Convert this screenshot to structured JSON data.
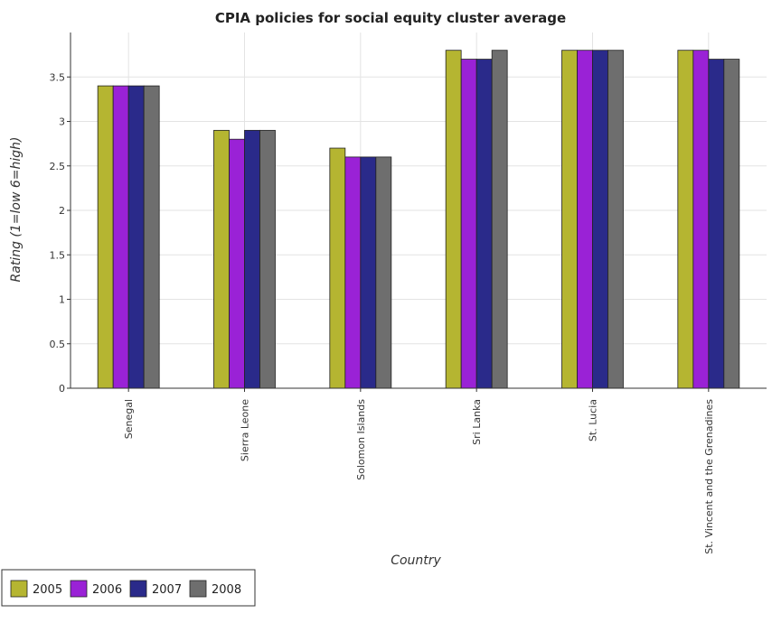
{
  "chart_data": {
    "type": "bar",
    "title": "CPIA policies for social equity cluster average",
    "xlabel": "Country",
    "ylabel": "Rating (1=low 6=high)",
    "ylim": [
      0,
      4
    ],
    "yticks": [
      "0",
      "0.5",
      "1",
      "1.5",
      "2",
      "2.5",
      "3",
      "3.5"
    ],
    "categories": [
      "Senegal",
      "Sierra Leone",
      "Solomon Islands",
      "Sri Lanka",
      "St. Lucia",
      "St. Vincent and the Grenadines"
    ],
    "series": [
      {
        "name": "2005",
        "color": "#b5b531",
        "values": [
          3.4,
          2.9,
          2.7,
          3.8,
          3.8,
          3.8
        ]
      },
      {
        "name": "2006",
        "color": "#9a22d6",
        "values": [
          3.4,
          2.8,
          2.6,
          3.7,
          3.8,
          3.8
        ]
      },
      {
        "name": "2007",
        "color": "#2a2a8a",
        "values": [
          3.4,
          2.9,
          2.6,
          3.7,
          3.8,
          3.7
        ]
      },
      {
        "name": "2008",
        "color": "#6e6e6e",
        "values": [
          3.4,
          2.9,
          2.6,
          3.8,
          3.8,
          3.7
        ]
      }
    ],
    "grid": true,
    "legend_position": "bottom-left"
  }
}
